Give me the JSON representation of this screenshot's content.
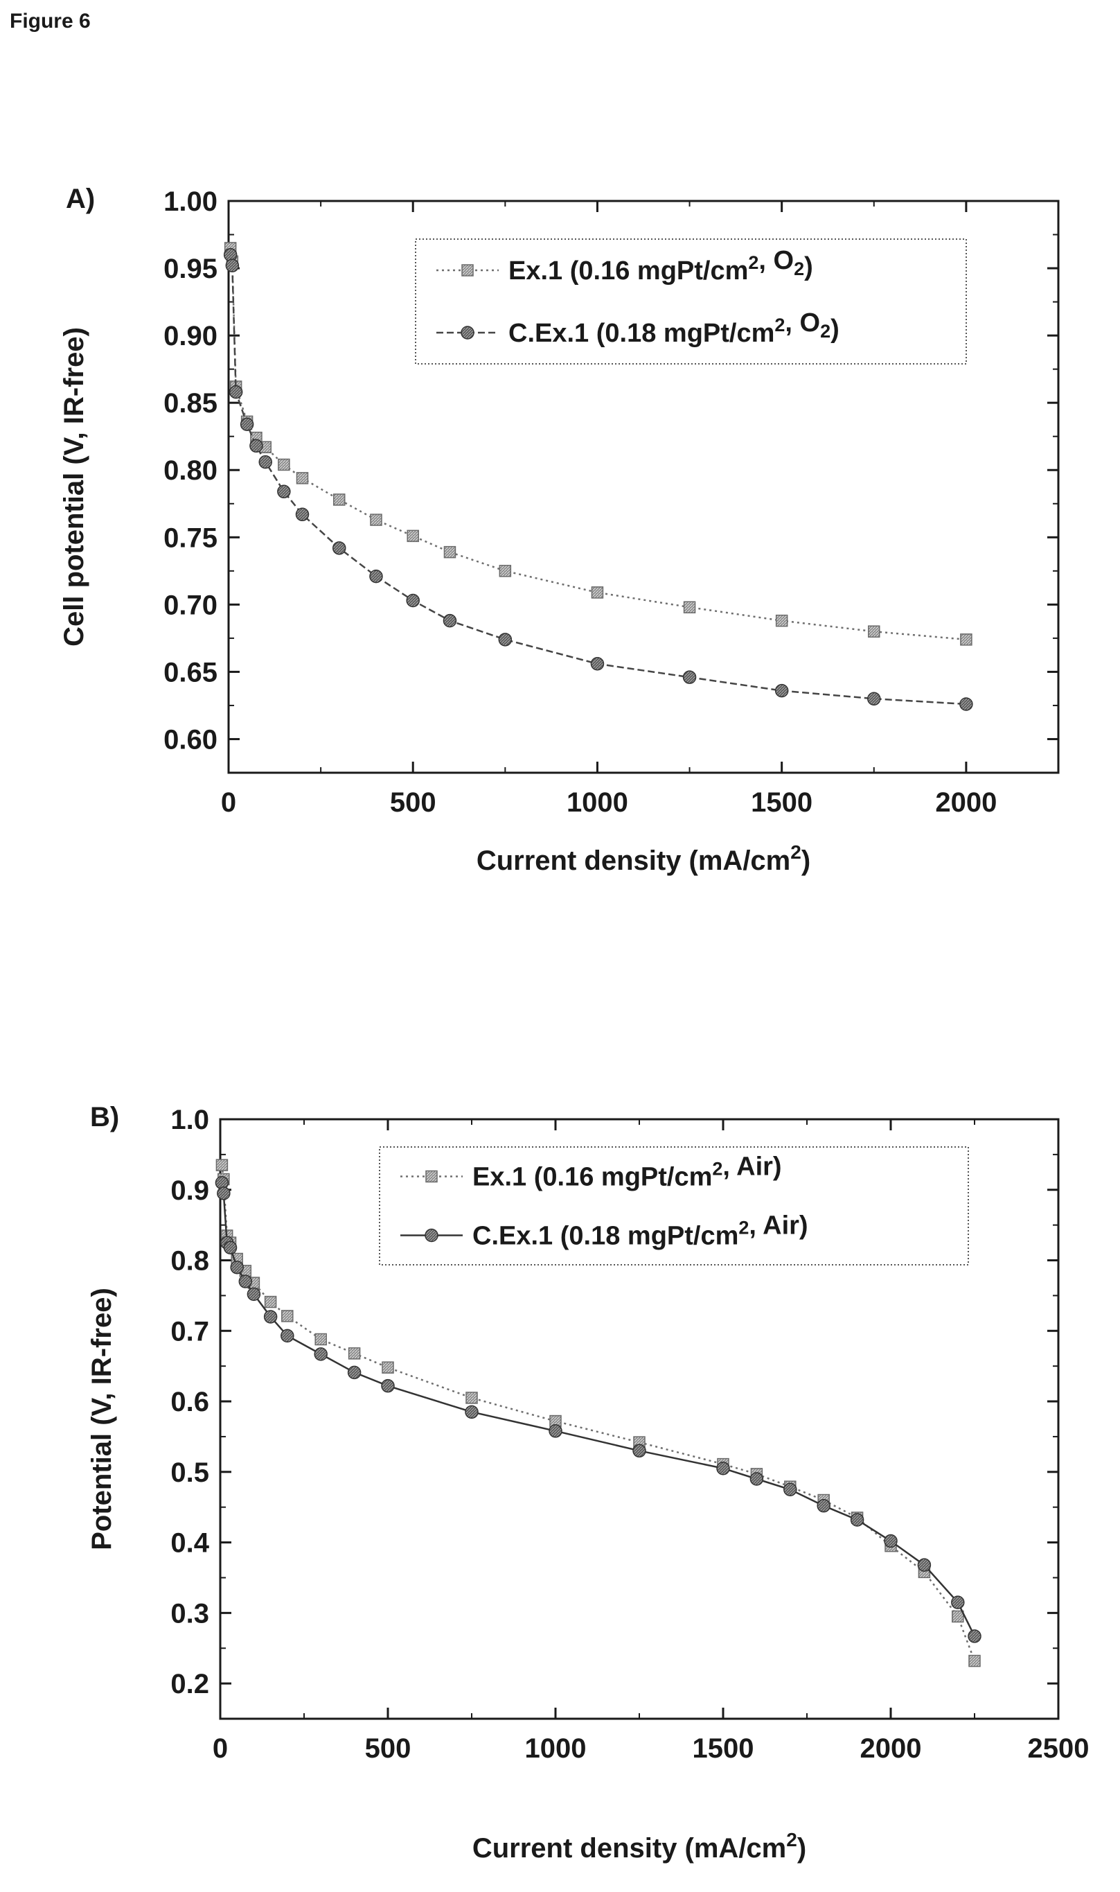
{
  "figure_label": "Figure 6",
  "chart_data": [
    {
      "type": "line",
      "panel_label": "A)",
      "xlabel": "Current density (mA/cm",
      "xlabel_sup": "2",
      "xlabel_after": ")",
      "ylabel": "Cell potential (V, IR-free)",
      "xlim": [
        0,
        2250
      ],
      "ylim": [
        0.575,
        1.0
      ],
      "x_ticks": [
        0,
        500,
        1000,
        1500,
        2000
      ],
      "y_ticks": [
        0.6,
        0.65,
        0.7,
        0.75,
        0.8,
        0.85,
        0.9,
        0.95,
        1.0
      ],
      "y_tick_decimals": 2,
      "legend_position": "top-right",
      "series": [
        {
          "name": "Ex.1 (0.16 mgPt/cm2, O2)",
          "label_parts": [
            {
              "t": "Ex.1 (0.16 mgPt/cm"
            },
            {
              "t": "2",
              "s": "sup"
            },
            {
              "t": ", O"
            },
            {
              "t": "2",
              "s": "sub"
            },
            {
              "t": ")"
            }
          ],
          "marker": "square",
          "line_style": "dotted",
          "color": "#6e6e6e",
          "x": [
            5,
            10,
            20,
            50,
            75,
            100,
            150,
            200,
            300,
            400,
            500,
            600,
            750,
            1000,
            1250,
            1500,
            1750,
            2000
          ],
          "y": [
            0.965,
            0.955,
            0.862,
            0.836,
            0.824,
            0.817,
            0.804,
            0.794,
            0.778,
            0.763,
            0.751,
            0.739,
            0.725,
            0.709,
            0.698,
            0.688,
            0.68,
            0.674
          ]
        },
        {
          "name": "C.Ex.1 (0.18 mgPt/cm2, O2)",
          "label_parts": [
            {
              "t": "C.Ex.1 (0.18 mgPt/cm"
            },
            {
              "t": "2",
              "s": "sup"
            },
            {
              "t": ", O"
            },
            {
              "t": "2",
              "s": "sub"
            },
            {
              "t": ")"
            }
          ],
          "marker": "circle",
          "line_style": "dashed",
          "color": "#454545",
          "x": [
            5,
            10,
            20,
            50,
            75,
            100,
            150,
            200,
            300,
            400,
            500,
            600,
            750,
            1000,
            1250,
            1500,
            1750,
            2000
          ],
          "y": [
            0.96,
            0.952,
            0.858,
            0.834,
            0.818,
            0.806,
            0.784,
            0.767,
            0.742,
            0.721,
            0.703,
            0.688,
            0.674,
            0.656,
            0.646,
            0.636,
            0.63,
            0.626
          ]
        }
      ]
    },
    {
      "type": "line",
      "panel_label": "B)",
      "xlabel": "Current density (mA/cm",
      "xlabel_sup": "2",
      "xlabel_after": ")",
      "ylabel": "Potential (V, IR-free)",
      "xlim": [
        0,
        2500
      ],
      "ylim": [
        0.15,
        1.0
      ],
      "x_ticks": [
        0,
        500,
        1000,
        1500,
        2000,
        2500
      ],
      "y_ticks": [
        0.2,
        0.3,
        0.4,
        0.5,
        0.6,
        0.7,
        0.8,
        0.9,
        1.0
      ],
      "y_tick_decimals": 1,
      "legend_position": "top-right",
      "series": [
        {
          "name": "Ex.1 (0.16 mgPt/cm2, Air)",
          "label_parts": [
            {
              "t": "Ex.1 (0.16 mgPt/cm"
            },
            {
              "t": "2",
              "s": "sup"
            },
            {
              "t": ", Air)"
            }
          ],
          "marker": "square",
          "line_style": "dotted",
          "color": "#6e6e6e",
          "x": [
            5,
            10,
            20,
            30,
            50,
            75,
            100,
            150,
            200,
            300,
            400,
            500,
            750,
            1000,
            1250,
            1500,
            1600,
            1700,
            1800,
            1900,
            2000,
            2100,
            2200,
            2250
          ],
          "y": [
            0.935,
            0.915,
            0.835,
            0.825,
            0.802,
            0.785,
            0.768,
            0.741,
            0.721,
            0.688,
            0.668,
            0.648,
            0.605,
            0.572,
            0.542,
            0.511,
            0.497,
            0.479,
            0.46,
            0.435,
            0.395,
            0.358,
            0.295,
            0.232
          ]
        },
        {
          "name": "C.Ex.1 (0.18 mgPt/cm2, Air)",
          "label_parts": [
            {
              "t": "C.Ex.1 (0.18 mgPt/cm"
            },
            {
              "t": "2",
              "s": "sup"
            },
            {
              "t": ", Air)"
            }
          ],
          "marker": "circle",
          "line_style": "solid",
          "color": "#333333",
          "x": [
            5,
            10,
            20,
            30,
            50,
            75,
            100,
            150,
            200,
            300,
            400,
            500,
            750,
            1000,
            1250,
            1500,
            1600,
            1700,
            1800,
            1900,
            2000,
            2100,
            2200,
            2250
          ],
          "y": [
            0.91,
            0.895,
            0.825,
            0.818,
            0.79,
            0.77,
            0.752,
            0.72,
            0.693,
            0.667,
            0.641,
            0.622,
            0.585,
            0.558,
            0.53,
            0.505,
            0.49,
            0.475,
            0.452,
            0.432,
            0.402,
            0.368,
            0.315,
            0.267
          ]
        }
      ]
    }
  ]
}
